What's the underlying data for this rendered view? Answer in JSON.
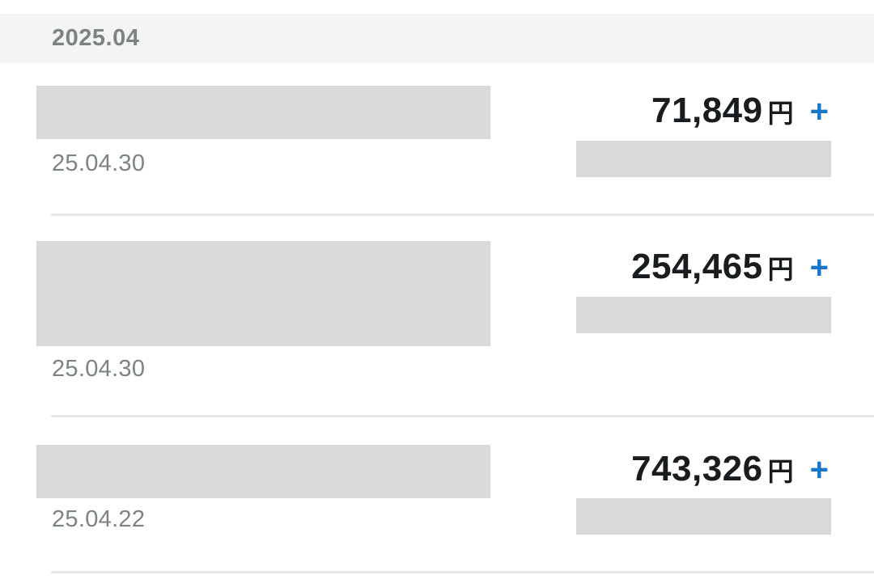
{
  "month_header": {
    "label": "2025.04"
  },
  "transactions": [
    {
      "date": "25.04.30",
      "amount": "71,849",
      "currency": "円",
      "sign": "+"
    },
    {
      "date": "25.04.30",
      "amount": "254,465",
      "currency": "円",
      "sign": "+"
    },
    {
      "date": "25.04.22",
      "amount": "743,326",
      "currency": "円",
      "sign": "+"
    }
  ]
}
